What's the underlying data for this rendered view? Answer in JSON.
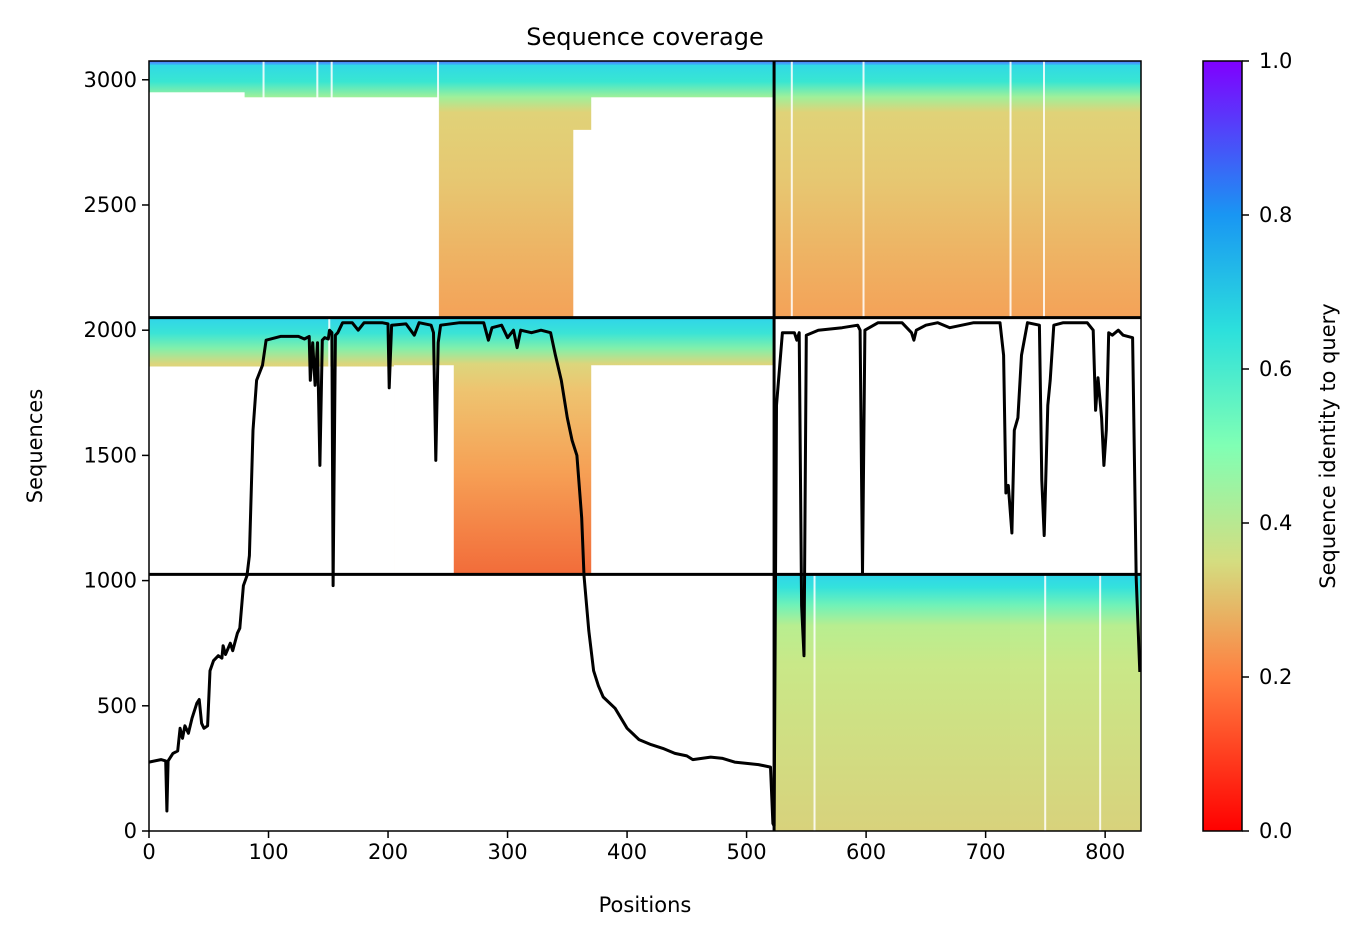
{
  "chart_data": {
    "type": "heatmap",
    "title": "Sequence coverage",
    "xlabel": "Positions",
    "ylabel": "Sequences",
    "xlim": [
      0,
      830
    ],
    "ylim": [
      0,
      3075
    ],
    "x_ticks": [
      "0",
      "100",
      "200",
      "300",
      "400",
      "500",
      "600",
      "700",
      "800"
    ],
    "x_tick_values": [
      0,
      100,
      200,
      300,
      400,
      500,
      600,
      700,
      800
    ],
    "y_ticks": [
      "0",
      "500",
      "1000",
      "1500",
      "2000",
      "2500",
      "3000"
    ],
    "y_tick_values": [
      0,
      500,
      1000,
      1500,
      2000,
      2500,
      3000
    ],
    "colorbar": {
      "label": "Sequence identity to query",
      "range": [
        0,
        1
      ],
      "ticks": [
        "0.0",
        "0.2",
        "0.4",
        "0.6",
        "0.8",
        "1.0"
      ],
      "tick_values": [
        0,
        0.2,
        0.4,
        0.6,
        0.8,
        1.0
      ],
      "colormap": "rainbow_r",
      "stops": [
        "#ff0000",
        "#ff8040",
        "#d4dd80",
        "#80ffb4",
        "#00b4eb",
        "#8000ff"
      ]
    },
    "chain_boundaries": {
      "x": [
        523
      ],
      "y": [
        1025,
        2050
      ]
    },
    "blocks": [
      {
        "name": "chain1-block",
        "x": [
          0,
          523
        ],
        "y": [
          2050,
          3075
        ],
        "identity_top": 0.65,
        "identity_bottom": 0.22
      },
      {
        "name": "chain2-block",
        "x": [
          523,
          830
        ],
        "y": [
          2050,
          3075
        ],
        "identity_top": 0.65,
        "identity_bottom": 0.22
      },
      {
        "name": "chain1-lower-block",
        "x": [
          0,
          523
        ],
        "y": [
          1025,
          2050
        ],
        "identity_top": 0.65,
        "identity_bottom": 0.16
      },
      {
        "name": "chain2-bottom-block",
        "x": [
          523,
          830
        ],
        "y": [
          0,
          1025
        ],
        "identity_top": 0.65,
        "identity_bottom": 0.33
      }
    ],
    "coverage_line": {
      "color": "#000000",
      "points": [
        [
          0,
          275
        ],
        [
          10,
          285
        ],
        [
          14,
          280
        ],
        [
          15,
          80
        ],
        [
          16,
          280
        ],
        [
          20,
          310
        ],
        [
          24,
          320
        ],
        [
          26,
          410
        ],
        [
          28,
          370
        ],
        [
          30,
          420
        ],
        [
          33,
          390
        ],
        [
          36,
          450
        ],
        [
          40,
          510
        ],
        [
          42,
          525
        ],
        [
          44,
          430
        ],
        [
          46,
          410
        ],
        [
          49,
          420
        ],
        [
          51,
          640
        ],
        [
          54,
          680
        ],
        [
          58,
          700
        ],
        [
          61,
          690
        ],
        [
          62,
          740
        ],
        [
          64,
          705
        ],
        [
          68,
          750
        ],
        [
          70,
          720
        ],
        [
          74,
          790
        ],
        [
          76,
          810
        ],
        [
          79,
          980
        ],
        [
          82,
          1020
        ],
        [
          84,
          1100
        ],
        [
          87,
          1600
        ],
        [
          90,
          1800
        ],
        [
          95,
          1860
        ],
        [
          98,
          1960
        ],
        [
          110,
          1975
        ],
        [
          125,
          1975
        ],
        [
          130,
          1965
        ],
        [
          134,
          1975
        ],
        [
          135,
          1800
        ],
        [
          137,
          1950
        ],
        [
          139,
          1780
        ],
        [
          141,
          1950
        ],
        [
          143,
          1460
        ],
        [
          145,
          1960
        ],
        [
          147,
          1970
        ],
        [
          150,
          1965
        ],
        [
          151,
          2000
        ],
        [
          153,
          1990
        ],
        [
          154,
          980
        ],
        [
          156,
          1980
        ],
        [
          158,
          1990
        ],
        [
          162,
          2030
        ],
        [
          170,
          2030
        ],
        [
          175,
          2000
        ],
        [
          180,
          2030
        ],
        [
          195,
          2030
        ],
        [
          200,
          2025
        ],
        [
          201,
          1770
        ],
        [
          203,
          2020
        ],
        [
          215,
          2025
        ],
        [
          222,
          1980
        ],
        [
          226,
          2030
        ],
        [
          236,
          2020
        ],
        [
          238,
          1990
        ],
        [
          240,
          1480
        ],
        [
          242,
          1950
        ],
        [
          244,
          2020
        ],
        [
          260,
          2030
        ],
        [
          280,
          2030
        ],
        [
          284,
          1960
        ],
        [
          287,
          2010
        ],
        [
          295,
          2020
        ],
        [
          300,
          1970
        ],
        [
          305,
          2000
        ],
        [
          308,
          1930
        ],
        [
          311,
          2000
        ],
        [
          320,
          1990
        ],
        [
          328,
          2000
        ],
        [
          336,
          1990
        ],
        [
          340,
          1900
        ],
        [
          345,
          1800
        ],
        [
          350,
          1650
        ],
        [
          354,
          1560
        ],
        [
          358,
          1500
        ],
        [
          362,
          1250
        ],
        [
          364,
          1020
        ],
        [
          368,
          800
        ],
        [
          372,
          640
        ],
        [
          376,
          580
        ],
        [
          380,
          535
        ],
        [
          390,
          490
        ],
        [
          400,
          410
        ],
        [
          410,
          365
        ],
        [
          420,
          345
        ],
        [
          430,
          330
        ],
        [
          440,
          310
        ],
        [
          450,
          300
        ],
        [
          455,
          285
        ],
        [
          470,
          295
        ],
        [
          480,
          290
        ],
        [
          490,
          275
        ],
        [
          500,
          270
        ],
        [
          510,
          265
        ],
        [
          520,
          255
        ],
        [
          522,
          30
        ],
        [
          523,
          20
        ],
        [
          525,
          1700
        ],
        [
          530,
          1990
        ],
        [
          540,
          1990
        ],
        [
          542,
          1960
        ],
        [
          544,
          1990
        ],
        [
          546,
          900
        ],
        [
          548,
          700
        ],
        [
          550,
          1980
        ],
        [
          560,
          2000
        ],
        [
          580,
          2010
        ],
        [
          593,
          2020
        ],
        [
          595,
          2000
        ],
        [
          597,
          1030
        ],
        [
          599,
          2000
        ],
        [
          610,
          2030
        ],
        [
          630,
          2030
        ],
        [
          638,
          1990
        ],
        [
          640,
          1960
        ],
        [
          642,
          2000
        ],
        [
          650,
          2020
        ],
        [
          660,
          2030
        ],
        [
          670,
          2010
        ],
        [
          690,
          2030
        ],
        [
          712,
          2030
        ],
        [
          715,
          1900
        ],
        [
          717,
          1350
        ],
        [
          719,
          1380
        ],
        [
          722,
          1190
        ],
        [
          724,
          1600
        ],
        [
          727,
          1650
        ],
        [
          730,
          1900
        ],
        [
          735,
          2030
        ],
        [
          745,
          2020
        ],
        [
          747,
          1400
        ],
        [
          749,
          1180
        ],
        [
          752,
          1700
        ],
        [
          754,
          1800
        ],
        [
          757,
          2020
        ],
        [
          765,
          2030
        ],
        [
          785,
          2030
        ],
        [
          790,
          2000
        ],
        [
          792,
          1680
        ],
        [
          794,
          1810
        ],
        [
          797,
          1650
        ],
        [
          799,
          1460
        ],
        [
          801,
          1600
        ],
        [
          803,
          1990
        ],
        [
          806,
          1980
        ],
        [
          811,
          2000
        ],
        [
          815,
          1980
        ],
        [
          823,
          1970
        ],
        [
          826,
          1010
        ],
        [
          829,
          635
        ]
      ]
    }
  }
}
